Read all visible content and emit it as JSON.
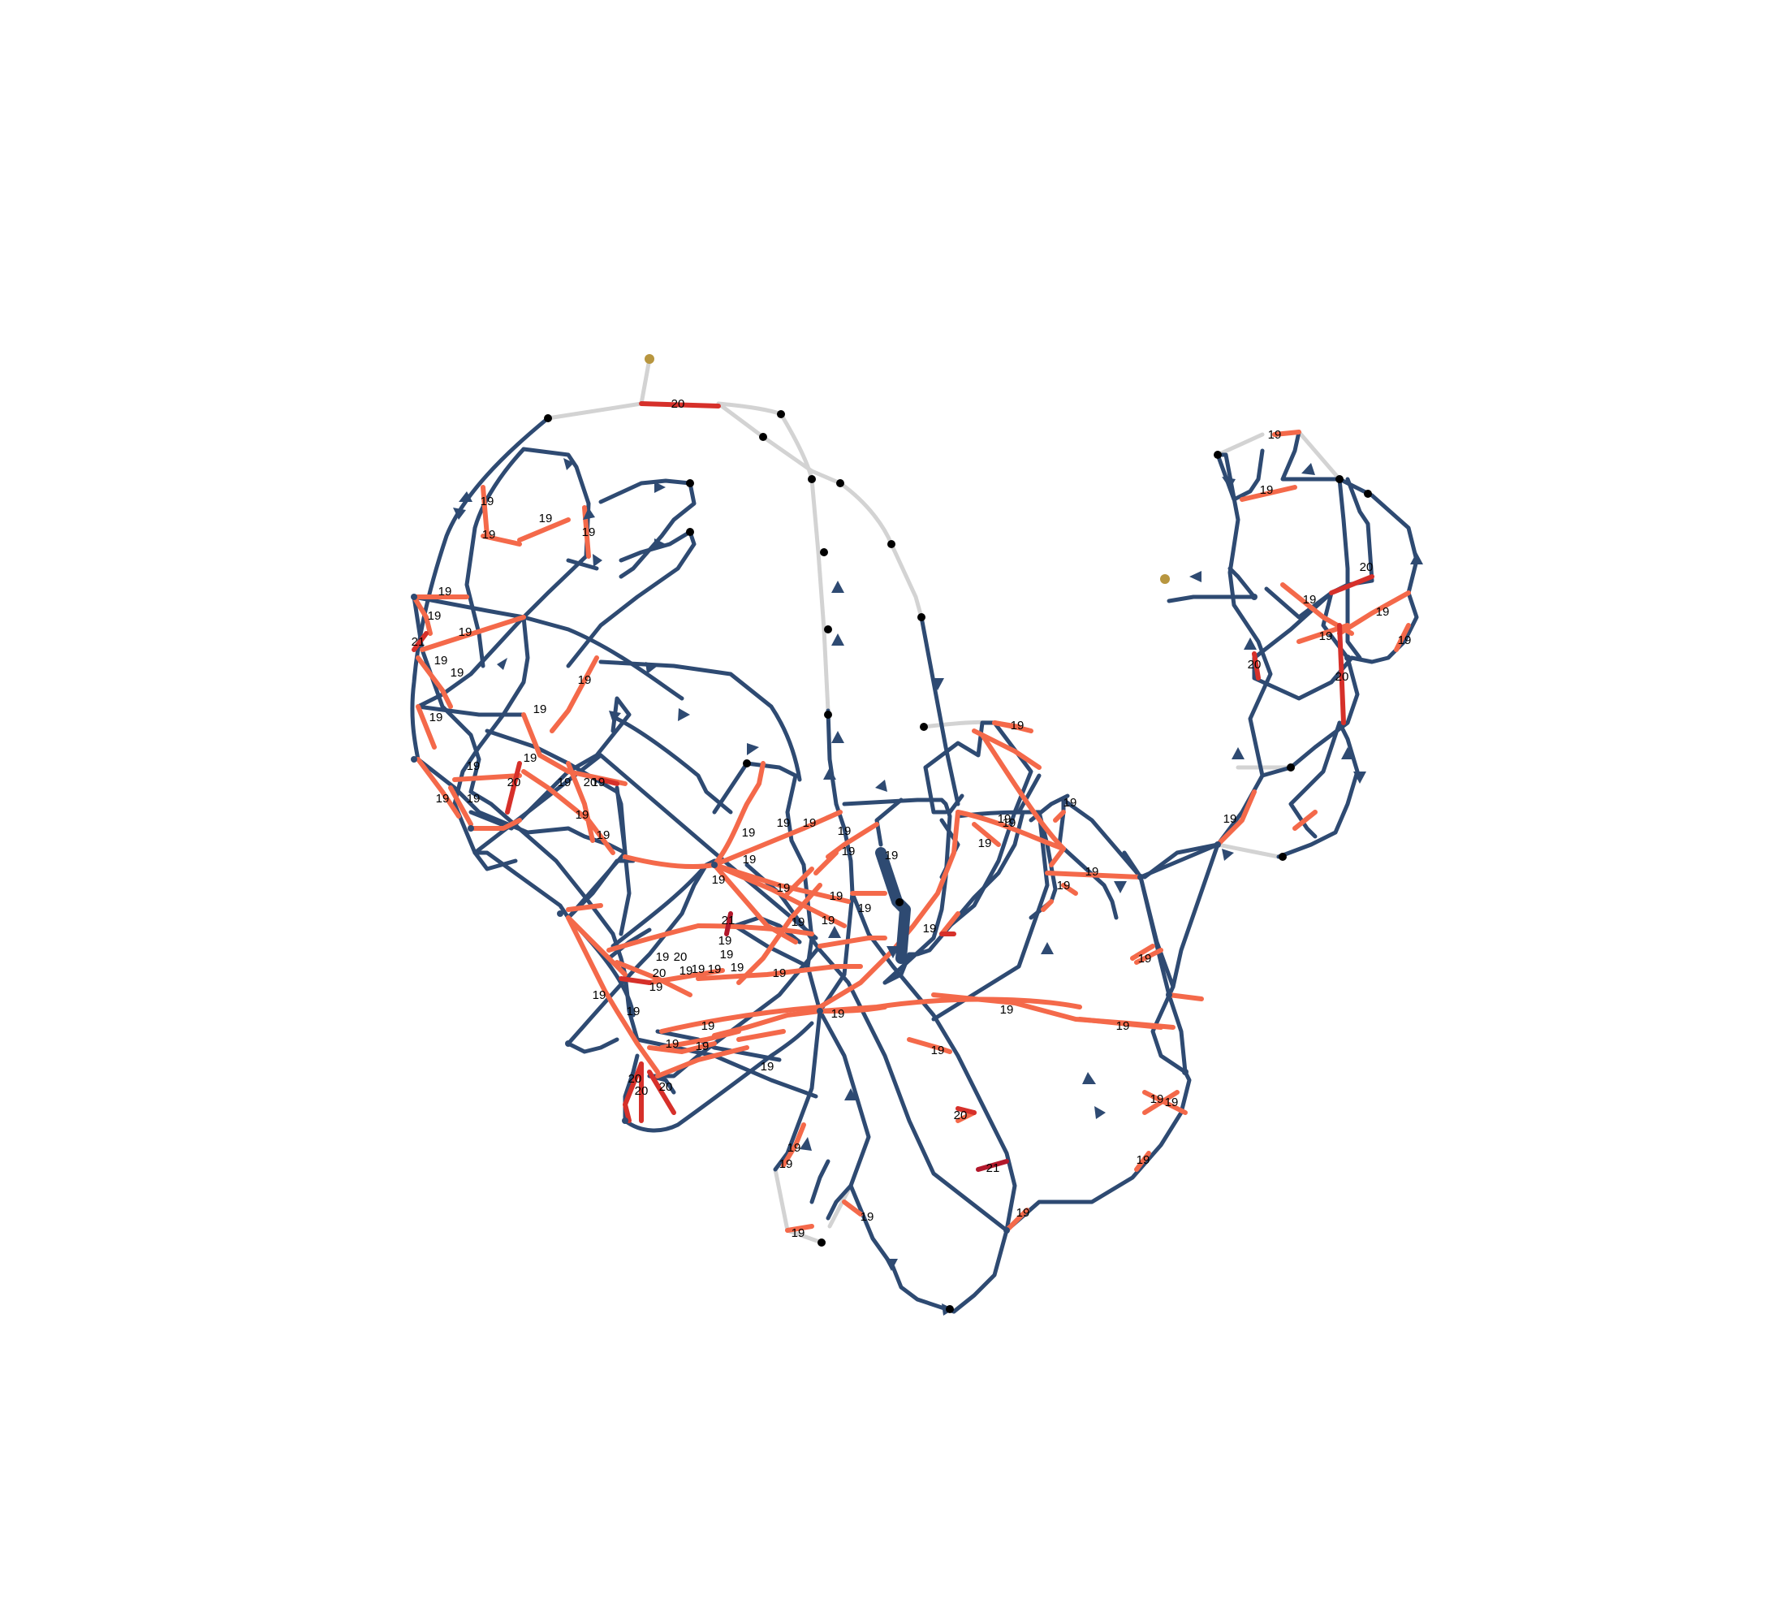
{
  "colors": {
    "background": "#ffffff",
    "edge_default": "#2e4a72",
    "edge_light": "#d3d3d3",
    "edge_19": "#f4694a",
    "edge_20": "#d6302a",
    "edge_21": "#b2182b",
    "node_default": "#2e4a72",
    "node_terminal": "#000000",
    "node_source": "#b8963f"
  },
  "labels": {
    "l19": "19",
    "l20": "20",
    "l21": "21"
  }
}
